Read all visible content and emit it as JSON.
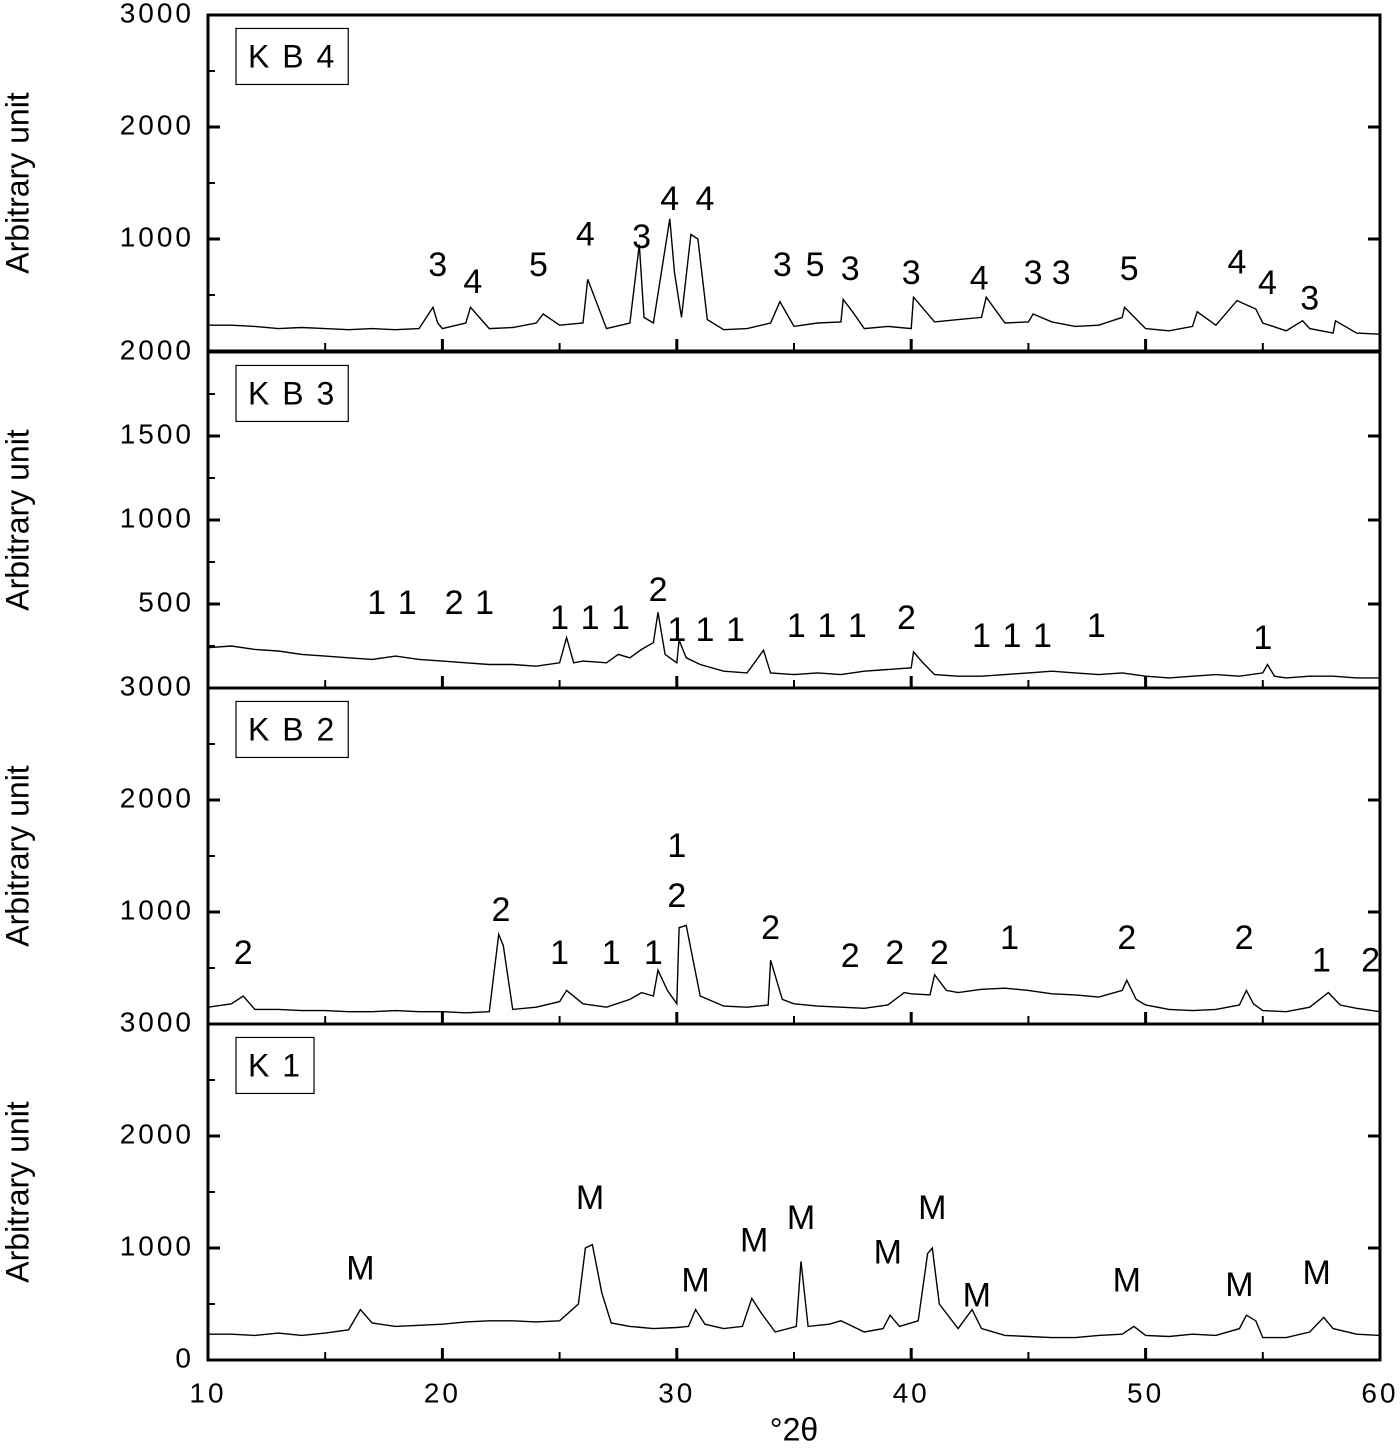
{
  "chart_data": [
    {
      "type": "line",
      "label": "K B 4",
      "ylabel": "Arbitrary unit",
      "xlim": [
        10,
        60
      ],
      "xticks": [
        10,
        20,
        30,
        40,
        50,
        60
      ],
      "ylim": [
        0,
        3000
      ],
      "yticks": [
        1000,
        2000,
        3000
      ],
      "series": [
        {
          "color": "#000000",
          "x": [
            10,
            11,
            12,
            13,
            14,
            15,
            16,
            17,
            18,
            19,
            19.6,
            19.8,
            20,
            21,
            21.2,
            22,
            23,
            24,
            24.3,
            25,
            26,
            26.2,
            27,
            28,
            28.4,
            28.6,
            29,
            29.7,
            29.9,
            30.2,
            30.6,
            30.9,
            31.3,
            32,
            33,
            34,
            34.4,
            35,
            36,
            37,
            37.1,
            37.5,
            38,
            39,
            40,
            40.1,
            41,
            42,
            43,
            43.2,
            44,
            45,
            45.2,
            46,
            47,
            48,
            49,
            49.1,
            50,
            51,
            52,
            52.2,
            53,
            53.9,
            54.7,
            55,
            56,
            56.7,
            57,
            58,
            58.1,
            59,
            60
          ],
          "values": [
            230,
            230,
            220,
            200,
            210,
            200,
            190,
            200,
            190,
            200,
            390,
            250,
            200,
            250,
            390,
            200,
            210,
            250,
            330,
            230,
            250,
            640,
            200,
            250,
            950,
            300,
            250,
            1180,
            700,
            300,
            1040,
            1000,
            280,
            190,
            200,
            250,
            440,
            220,
            250,
            260,
            460,
            350,
            200,
            220,
            200,
            480,
            260,
            280,
            300,
            480,
            250,
            260,
            330,
            260,
            220,
            230,
            300,
            390,
            200,
            180,
            220,
            350,
            230,
            450,
            375,
            250,
            180,
            270,
            200,
            160,
            270,
            160,
            150
          ]
        }
      ],
      "annotations": [
        {
          "text": "3",
          "x": 19.8,
          "y": 750
        },
        {
          "text": "4",
          "x": 21.3,
          "y": 600
        },
        {
          "text": "5",
          "x": 24.1,
          "y": 750
        },
        {
          "text": "4",
          "x": 26.1,
          "y": 1020
        },
        {
          "text": "3",
          "x": 28.5,
          "y": 1000
        },
        {
          "text": "4",
          "x": 29.7,
          "y": 1340
        },
        {
          "text": "4",
          "x": 31.2,
          "y": 1340
        },
        {
          "text": "3",
          "x": 34.5,
          "y": 750
        },
        {
          "text": "5",
          "x": 35.9,
          "y": 750
        },
        {
          "text": "3",
          "x": 37.4,
          "y": 715
        },
        {
          "text": "3",
          "x": 40.0,
          "y": 680
        },
        {
          "text": "4",
          "x": 42.9,
          "y": 630
        },
        {
          "text": "3",
          "x": 45.2,
          "y": 680
        },
        {
          "text": "3",
          "x": 46.4,
          "y": 680
        },
        {
          "text": "5",
          "x": 49.3,
          "y": 715
        },
        {
          "text": "4",
          "x": 53.9,
          "y": 770
        },
        {
          "text": "4",
          "x": 55.2,
          "y": 590
        },
        {
          "text": "3",
          "x": 57.0,
          "y": 450
        }
      ]
    },
    {
      "type": "line",
      "label": "K B 3",
      "ylabel": "Arbitrary unit",
      "xlim": [
        10,
        60
      ],
      "xticks": [
        10,
        20,
        30,
        40,
        50,
        60
      ],
      "ylim": [
        0,
        2000
      ],
      "yticks": [
        500,
        1000,
        1500,
        2000
      ],
      "series": [
        {
          "color": "#000000",
          "x": [
            10,
            11,
            12,
            13,
            14,
            15,
            16,
            17,
            18,
            19,
            20,
            21,
            22,
            23,
            24,
            25,
            25.3,
            25.6,
            26,
            27,
            27.5,
            28,
            28.5,
            29,
            29.2,
            29.5,
            30,
            30.1,
            30.4,
            31,
            32,
            33,
            33.7,
            34,
            35,
            36,
            37,
            38,
            39,
            40,
            40.1,
            40.5,
            41,
            42,
            43,
            44,
            45,
            46,
            47,
            48,
            49,
            50,
            51,
            52,
            53,
            54,
            55,
            55.2,
            55.5,
            56,
            57,
            58,
            59,
            60
          ],
          "values": [
            240,
            250,
            230,
            220,
            200,
            190,
            180,
            170,
            190,
            170,
            160,
            150,
            140,
            140,
            130,
            150,
            300,
            150,
            160,
            150,
            200,
            180,
            230,
            270,
            450,
            200,
            150,
            285,
            180,
            140,
            100,
            90,
            225,
            90,
            80,
            90,
            80,
            100,
            110,
            120,
            215,
            150,
            80,
            70,
            70,
            80,
            90,
            100,
            90,
            80,
            90,
            70,
            60,
            70,
            80,
            70,
            90,
            140,
            70,
            60,
            70,
            70,
            60,
            60
          ]
        }
      ],
      "annotations": [
        {
          "text": "1",
          "x": 17.2,
          "y": 494
        },
        {
          "text": "1",
          "x": 18.5,
          "y": 494
        },
        {
          "text": "2",
          "x": 20.5,
          "y": 494
        },
        {
          "text": "1",
          "x": 21.8,
          "y": 494
        },
        {
          "text": "1",
          "x": 25.0,
          "y": 405
        },
        {
          "text": "1",
          "x": 26.3,
          "y": 405
        },
        {
          "text": "1",
          "x": 27.6,
          "y": 405
        },
        {
          "text": "2",
          "x": 29.2,
          "y": 571
        },
        {
          "text": "1",
          "x": 30.0,
          "y": 333
        },
        {
          "text": "1",
          "x": 31.2,
          "y": 333
        },
        {
          "text": "1",
          "x": 32.5,
          "y": 333
        },
        {
          "text": "1",
          "x": 35.1,
          "y": 357
        },
        {
          "text": "1",
          "x": 36.4,
          "y": 357
        },
        {
          "text": "1",
          "x": 37.7,
          "y": 357
        },
        {
          "text": "2",
          "x": 39.8,
          "y": 405
        },
        {
          "text": "1",
          "x": 43.0,
          "y": 298
        },
        {
          "text": "1",
          "x": 44.3,
          "y": 298
        },
        {
          "text": "1",
          "x": 45.6,
          "y": 298
        },
        {
          "text": "1",
          "x": 47.9,
          "y": 357
        },
        {
          "text": "1",
          "x": 55.0,
          "y": 286
        }
      ]
    },
    {
      "type": "line",
      "label": "K B 2",
      "ylabel": "Arbitrary unit",
      "xlim": [
        10,
        60
      ],
      "xticks": [
        10,
        20,
        30,
        40,
        50,
        60
      ],
      "ylim": [
        0,
        3000
      ],
      "yticks": [
        1000,
        2000,
        3000
      ],
      "series": [
        {
          "color": "#000000",
          "x": [
            10,
            11,
            11.5,
            12,
            13,
            14,
            15,
            16,
            17,
            18,
            19,
            20,
            21,
            22,
            22.4,
            22.6,
            23,
            24,
            25,
            25.3,
            26,
            27,
            28,
            28.5,
            29,
            29.2,
            29.6,
            30,
            30.1,
            30.4,
            31,
            32,
            33,
            33.9,
            34,
            34.5,
            35,
            36,
            37,
            38,
            39,
            39.7,
            40,
            40.8,
            41,
            41.5,
            42,
            43,
            44,
            45,
            46,
            47,
            48,
            49,
            49.2,
            49.6,
            50,
            51,
            52,
            53,
            54,
            54.3,
            54.6,
            55,
            56,
            57,
            57.8,
            58.3,
            59,
            60
          ],
          "values": [
            150,
            180,
            250,
            130,
            130,
            120,
            120,
            110,
            110,
            120,
            110,
            110,
            100,
            110,
            800,
            700,
            130,
            150,
            200,
            300,
            180,
            150,
            220,
            280,
            250,
            480,
            300,
            180,
            860,
            880,
            250,
            160,
            150,
            170,
            570,
            220,
            180,
            160,
            150,
            140,
            170,
            280,
            270,
            260,
            440,
            300,
            280,
            310,
            320,
            300,
            270,
            260,
            240,
            300,
            390,
            220,
            170,
            130,
            120,
            130,
            170,
            300,
            180,
            120,
            110,
            150,
            280,
            170,
            140,
            110
          ]
        }
      ],
      "annotations": [
        {
          "text": "2",
          "x": 11.5,
          "y": 615
        },
        {
          "text": "2",
          "x": 22.5,
          "y": 1000
        },
        {
          "text": "1",
          "x": 25.0,
          "y": 615
        },
        {
          "text": "1",
          "x": 27.2,
          "y": 615
        },
        {
          "text": "1",
          "x": 29.0,
          "y": 615
        },
        {
          "text": "1",
          "x": 30.0,
          "y": 1570
        },
        {
          "text": "2",
          "x": 30.0,
          "y": 1125
        },
        {
          "text": "2",
          "x": 34.0,
          "y": 840
        },
        {
          "text": "2",
          "x": 37.4,
          "y": 590
        },
        {
          "text": "2",
          "x": 39.3,
          "y": 615
        },
        {
          "text": "2",
          "x": 41.2,
          "y": 615
        },
        {
          "text": "1",
          "x": 44.2,
          "y": 750
        },
        {
          "text": "2",
          "x": 49.2,
          "y": 750
        },
        {
          "text": "2",
          "x": 54.2,
          "y": 750
        },
        {
          "text": "1",
          "x": 57.5,
          "y": 550
        },
        {
          "text": "2",
          "x": 59.6,
          "y": 550
        }
      ]
    },
    {
      "type": "line",
      "label": "K 1",
      "ylabel": "Arbitrary unit",
      "xlabel": "°2θ",
      "xlim": [
        10,
        60
      ],
      "xticks": [
        10,
        20,
        30,
        40,
        50,
        60
      ],
      "ylim": [
        0,
        3000
      ],
      "yticks": [
        0,
        1000,
        2000,
        3000
      ],
      "series": [
        {
          "color": "#000000",
          "x": [
            10,
            11,
            12,
            13,
            14,
            15,
            16,
            16.5,
            17,
            18,
            19,
            20,
            21,
            22,
            23,
            24,
            25,
            25.8,
            26.1,
            26.4,
            26.8,
            27.2,
            28,
            29,
            30,
            30.5,
            30.8,
            31.2,
            32,
            32.8,
            33.2,
            33.6,
            34.2,
            35.1,
            35.3,
            35.6,
            36.5,
            37,
            38,
            38.8,
            39.1,
            39.5,
            40.3,
            40.7,
            40.9,
            41.2,
            42,
            42.6,
            43,
            44,
            45,
            46,
            47,
            48,
            49,
            49.5,
            50,
            51,
            52,
            53,
            54,
            54.3,
            54.7,
            55,
            56,
            57,
            57.6,
            58,
            59,
            60
          ],
          "values": [
            230,
            230,
            220,
            240,
            220,
            240,
            270,
            450,
            330,
            300,
            310,
            320,
            340,
            350,
            350,
            340,
            350,
            500,
            1000,
            1030,
            600,
            330,
            300,
            280,
            290,
            300,
            450,
            320,
            280,
            300,
            550,
            420,
            250,
            300,
            880,
            300,
            320,
            350,
            250,
            280,
            400,
            300,
            350,
            950,
            1000,
            500,
            280,
            450,
            280,
            220,
            210,
            200,
            200,
            220,
            230,
            300,
            220,
            210,
            230,
            220,
            280,
            400,
            350,
            200,
            200,
            250,
            380,
            280,
            230,
            220
          ]
        }
      ],
      "annotations": [
        {
          "text": "M",
          "x": 16.5,
          "y": 800
        },
        {
          "text": "M",
          "x": 26.3,
          "y": 1430
        },
        {
          "text": "M",
          "x": 30.8,
          "y": 690
        },
        {
          "text": "M",
          "x": 33.3,
          "y": 1050
        },
        {
          "text": "M",
          "x": 35.3,
          "y": 1250
        },
        {
          "text": "M",
          "x": 39.0,
          "y": 940
        },
        {
          "text": "M",
          "x": 40.9,
          "y": 1340
        },
        {
          "text": "M",
          "x": 42.8,
          "y": 560
        },
        {
          "text": "M",
          "x": 49.2,
          "y": 690
        },
        {
          "text": "M",
          "x": 54.0,
          "y": 650
        },
        {
          "text": "M",
          "x": 57.3,
          "y": 760
        }
      ]
    }
  ]
}
